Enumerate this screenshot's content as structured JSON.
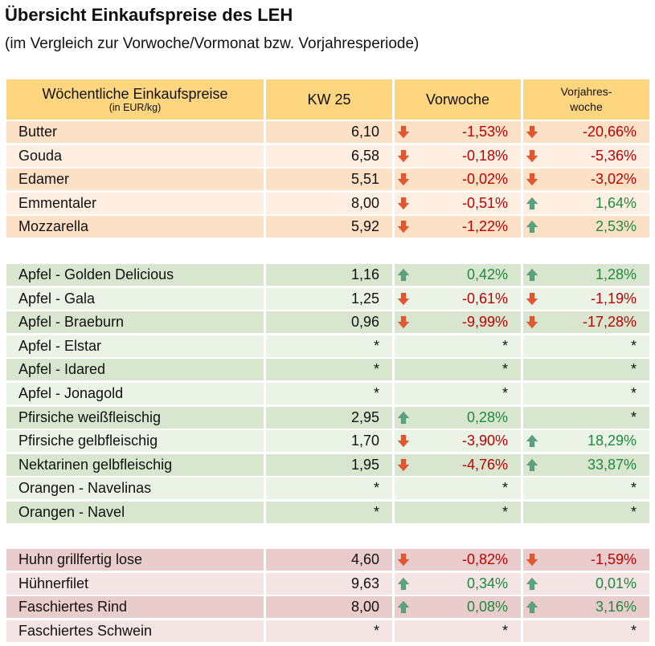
{
  "title": "Übersicht Einkaufspreise des LEH",
  "subtitle": "(im Vergleich zur Vorwoche/Vormonat bzw. Vorjahresperiode)",
  "header": {
    "col1_line1": "Wöchentliche Einkaufspreise",
    "col1_line2": "(in EUR/kg)",
    "col2": "KW 25",
    "col3": "Vorwoche",
    "col4_line1": "Vorjahres-",
    "col4_line2": "woche"
  },
  "colors": {
    "header": "#ffd680",
    "dairy_dark": "#fde1c7",
    "dairy_light": "#feefe2",
    "fruit_dark": "#d9e6cf",
    "fruit_light": "#ebf2e6",
    "meat_dark": "#eacccc",
    "meat_light": "#f4e4e4",
    "down_arrow": "#e6552b",
    "up_arrow": "#5aa37f",
    "negative_text": "#c00000",
    "positive_text": "#1d8a3c"
  },
  "groups": [
    {
      "id": "dairy",
      "rows": [
        {
          "name": "Butter",
          "value": "6,10",
          "vw": "-1,53%",
          "vw_dir": "down",
          "vj": "-20,66%",
          "vj_dir": "down"
        },
        {
          "name": "Gouda",
          "value": "6,58",
          "vw": "-0,18%",
          "vw_dir": "down",
          "vj": "-5,36%",
          "vj_dir": "down"
        },
        {
          "name": "Edamer",
          "value": "5,51",
          "vw": "-0,02%",
          "vw_dir": "down",
          "vj": "-3,02%",
          "vj_dir": "down"
        },
        {
          "name": "Emmentaler",
          "value": "8,00",
          "vw": "-0,51%",
          "vw_dir": "down",
          "vj": "1,64%",
          "vj_dir": "up"
        },
        {
          "name": "Mozzarella",
          "value": "5,92",
          "vw": "-1,22%",
          "vw_dir": "down",
          "vj": "2,53%",
          "vj_dir": "up"
        }
      ]
    },
    {
      "id": "fruit",
      "rows": [
        {
          "name": "Apfel - Golden Delicious",
          "value": "1,16",
          "vw": "0,42%",
          "vw_dir": "up",
          "vj": "1,28%",
          "vj_dir": "up"
        },
        {
          "name": "Apfel - Gala",
          "value": "1,25",
          "vw": "-0,61%",
          "vw_dir": "down",
          "vj": "-1,19%",
          "vj_dir": "down"
        },
        {
          "name": "Apfel - Braeburn",
          "value": "0,96",
          "vw": "-9,99%",
          "vw_dir": "down",
          "vj": "-17,28%",
          "vj_dir": "down"
        },
        {
          "name": "Apfel - Elstar",
          "value": "*",
          "vw": "*",
          "vw_dir": "",
          "vj": "*",
          "vj_dir": ""
        },
        {
          "name": "Apfel - Idared",
          "value": "*",
          "vw": "*",
          "vw_dir": "",
          "vj": "*",
          "vj_dir": ""
        },
        {
          "name": "Apfel - Jonagold",
          "value": "*",
          "vw": "*",
          "vw_dir": "",
          "vj": "*",
          "vj_dir": ""
        },
        {
          "name": "Pfirsiche weißfleischig",
          "value": "2,95",
          "vw": "0,28%",
          "vw_dir": "up",
          "vj": "*",
          "vj_dir": ""
        },
        {
          "name": "Pfirsiche gelbfleischig",
          "value": "1,70",
          "vw": "-3,90%",
          "vw_dir": "down",
          "vj": "18,29%",
          "vj_dir": "up"
        },
        {
          "name": "Nektarinen gelbfleischig",
          "value": "1,95",
          "vw": "-4,76%",
          "vw_dir": "down",
          "vj": "33,87%",
          "vj_dir": "up"
        },
        {
          "name": "Orangen - Navelinas",
          "value": "*",
          "vw": "*",
          "vw_dir": "",
          "vj": "*",
          "vj_dir": ""
        },
        {
          "name": "Orangen - Navel",
          "value": "*",
          "vw": "*",
          "vw_dir": "",
          "vj": "*",
          "vj_dir": ""
        }
      ]
    },
    {
      "id": "meat",
      "rows": [
        {
          "name": "Huhn grillfertig lose",
          "value": "4,60",
          "vw": "-0,82%",
          "vw_dir": "down",
          "vj": "-1,59%",
          "vj_dir": "down"
        },
        {
          "name": "Hühnerfilet",
          "value": "9,63",
          "vw": "0,34%",
          "vw_dir": "up",
          "vj": "0,01%",
          "vj_dir": "up"
        },
        {
          "name": "Faschiertes Rind",
          "value": "8,00",
          "vw": "0,08%",
          "vw_dir": "up",
          "vj": "3,16%",
          "vj_dir": "up"
        },
        {
          "name": "Faschiertes Schwein",
          "value": "*",
          "vw": "*",
          "vw_dir": "",
          "vj": "*",
          "vj_dir": ""
        }
      ]
    }
  ]
}
